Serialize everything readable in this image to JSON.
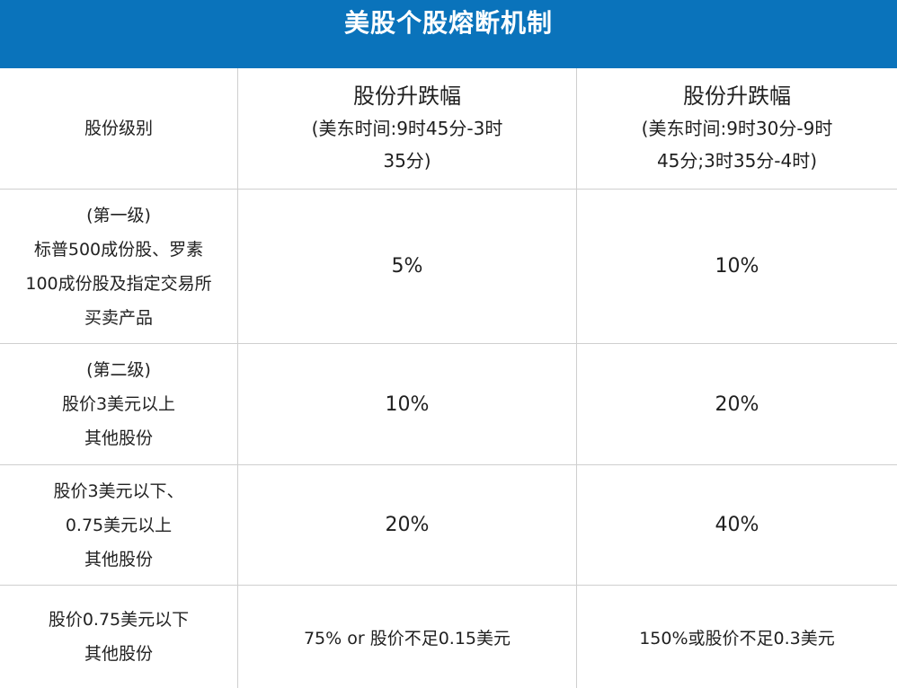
{
  "title": "美股个股熔断机制",
  "header": {
    "col1": "股份级别",
    "col2": {
      "title": "股份升跌幅",
      "lines": [
        "(美东时间:9时45分-3时",
        "35分)"
      ]
    },
    "col3": {
      "title": "股份升跌幅",
      "lines": [
        "(美东时间:9时30分-9时",
        "45分;3时35分-4时)"
      ]
    }
  },
  "rows": [
    {
      "level": [
        "(第一级)",
        "标普500成份股、罗素",
        "100成份股及指定交易所",
        "买卖产品"
      ],
      "range1": "5%",
      "range2": "10%"
    },
    {
      "level": [
        "(第二级)",
        "股价3美元以上",
        "其他股份"
      ],
      "range1": "10%",
      "range2": "20%"
    },
    {
      "level": [
        "股价3美元以下、",
        "0.75美元以上",
        "其他股份"
      ],
      "range1": "20%",
      "range2": "40%"
    },
    {
      "level": [
        "股价0.75美元以下",
        "其他股份"
      ],
      "range1": "75% or 股价不足0.15美元",
      "range2": "150%或股价不足0.3美元"
    }
  ]
}
